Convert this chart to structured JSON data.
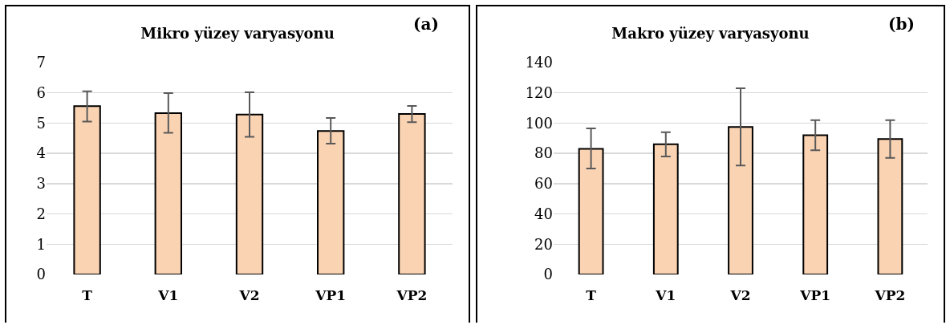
{
  "chart_data": [
    {
      "type": "bar",
      "title": "Mikro yüzey varyasyonu",
      "annotations": [
        "(a)"
      ],
      "categories": [
        "T",
        "V1",
        "V2",
        "VP1",
        "VP2"
      ],
      "values": [
        5.56,
        5.33,
        5.28,
        4.74,
        5.3
      ],
      "errors": [
        [
          5.05,
          6.05
        ],
        [
          4.68,
          5.99
        ],
        [
          4.55,
          6.02
        ],
        [
          4.32,
          5.17
        ],
        [
          5.03,
          5.57
        ]
      ],
      "color": "#fad3b3",
      "ylim": [
        0,
        7
      ],
      "yticks": [
        0,
        1,
        2,
        3,
        4,
        5,
        6,
        7
      ],
      "grid": "y"
    },
    {
      "type": "bar",
      "title": "Makro yüzey varyasyonu",
      "annotations": [
        "(b)"
      ],
      "categories": [
        "T",
        "V1",
        "V2",
        "VP1",
        "VP2"
      ],
      "values": [
        83,
        86,
        97.5,
        92,
        89.5
      ],
      "errors": [
        [
          70,
          96.5
        ],
        [
          78,
          94
        ],
        [
          72,
          123
        ],
        [
          82,
          102
        ],
        [
          77,
          102
        ]
      ],
      "color": "#fad3b3",
      "ylim": [
        0,
        140
      ],
      "yticks": [
        0,
        20,
        40,
        60,
        80,
        100,
        120,
        140
      ],
      "grid": "y"
    }
  ]
}
